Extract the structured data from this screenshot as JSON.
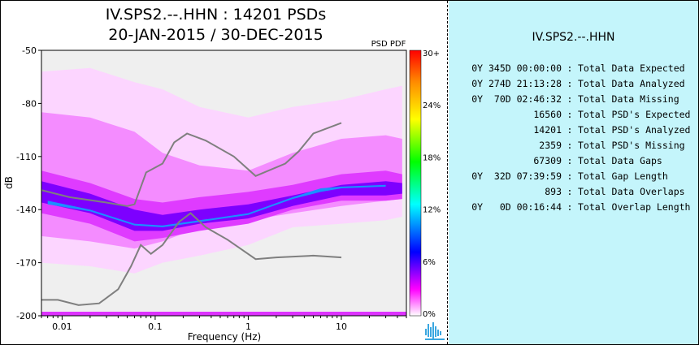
{
  "header": {
    "title": "IV.SPS2.--.HHN : 14201 PSDs",
    "subtitle": "20-JAN-2015 / 30-DEC-2015"
  },
  "colors": {
    "background_fill": "#efefef",
    "model_line": "#7f7f7f",
    "stats_panel": "#c4f5fb"
  },
  "chart_data": {
    "type": "heatmap",
    "x_scale": "log",
    "xlabel": "Frequency (Hz)",
    "ylabel": "dB",
    "xlim": [
      0.006,
      50
    ],
    "ylim": [
      -200,
      -50
    ],
    "xticks": [
      {
        "value": 0.01,
        "label": "0.01"
      },
      {
        "value": 0.1,
        "label": "0.1"
      },
      {
        "value": 1,
        "label": "1"
      },
      {
        "value": 10,
        "label": "10"
      }
    ],
    "yticks": [
      {
        "value": -50,
        "label": "-50"
      },
      {
        "value": -80,
        "label": "-80"
      },
      {
        "value": -110,
        "label": "-110"
      },
      {
        "value": -140,
        "label": "-140"
      },
      {
        "value": -170,
        "label": "-170"
      },
      {
        "value": -200,
        "label": "-200"
      }
    ],
    "colorbar": {
      "title": "PSD PDF",
      "ticks": [
        "30+",
        "24%",
        "18%",
        "12%",
        "6%",
        "0%"
      ],
      "stops": [
        "#ff0000",
        "#ff8c00",
        "#ffff00",
        "#00ff00",
        "#00ffff",
        "#0000ff",
        "#ff00ff",
        "#ffffff"
      ]
    },
    "series": [
      {
        "type": "line",
        "points": [
          [
            0.006,
            -191
          ],
          [
            0.009,
            -191
          ],
          [
            0.015,
            -194
          ],
          [
            0.025,
            -193
          ],
          [
            0.04,
            -185
          ],
          [
            0.055,
            -172
          ],
          [
            0.07,
            -160
          ],
          [
            0.09,
            -165
          ],
          [
            0.12,
            -160
          ],
          [
            0.18,
            -147
          ],
          [
            0.24,
            -142
          ],
          [
            0.35,
            -150
          ],
          [
            0.6,
            -157
          ],
          [
            1.2,
            -168
          ],
          [
            2.0,
            -167
          ],
          [
            5.0,
            -166
          ],
          [
            10,
            -167
          ]
        ]
      },
      {
        "type": "line",
        "points": [
          [
            0.006,
            -129
          ],
          [
            0.012,
            -133
          ],
          [
            0.03,
            -136
          ],
          [
            0.05,
            -138
          ],
          [
            0.06,
            -137
          ],
          [
            0.08,
            -119
          ],
          [
            0.12,
            -114
          ],
          [
            0.16,
            -102
          ],
          [
            0.22,
            -97
          ],
          [
            0.35,
            -101
          ],
          [
            0.7,
            -110
          ],
          [
            1.2,
            -121
          ],
          [
            2.5,
            -114
          ],
          [
            3.5,
            -107
          ],
          [
            5.0,
            -97
          ],
          [
            10,
            -91
          ]
        ]
      }
    ],
    "density_bands": [
      {
        "level": 0.02,
        "points": [
          [
            0.006,
            -62,
            -170
          ],
          [
            0.02,
            -60,
            -172
          ],
          [
            0.06,
            -68,
            -176
          ],
          [
            0.12,
            -72,
            -170
          ],
          [
            0.3,
            -82,
            -166
          ],
          [
            1,
            -88,
            -160
          ],
          [
            3,
            -82,
            -150
          ],
          [
            10,
            -78,
            -148
          ],
          [
            30,
            -72,
            -146
          ],
          [
            45,
            -70,
            -144
          ]
        ]
      },
      {
        "level": 0.06,
        "points": [
          [
            0.006,
            -85,
            -155
          ],
          [
            0.02,
            -88,
            -158
          ],
          [
            0.06,
            -96,
            -162
          ],
          [
            0.12,
            -108,
            -158
          ],
          [
            0.3,
            -115,
            -150
          ],
          [
            1,
            -118,
            -146
          ],
          [
            3,
            -108,
            -142
          ],
          [
            10,
            -100,
            -138
          ],
          [
            30,
            -98,
            -135
          ],
          [
            45,
            -100,
            -134
          ]
        ]
      },
      {
        "level": 0.14,
        "points": [
          [
            0.006,
            -118,
            -142
          ],
          [
            0.02,
            -125,
            -148
          ],
          [
            0.06,
            -134,
            -158
          ],
          [
            0.12,
            -136,
            -156
          ],
          [
            0.3,
            -133,
            -152
          ],
          [
            1,
            -130,
            -148
          ],
          [
            3,
            -126,
            -140
          ],
          [
            10,
            -120,
            -135
          ],
          [
            30,
            -118,
            -135
          ],
          [
            45,
            -120,
            -134
          ]
        ]
      },
      {
        "level": 0.35,
        "points": [
          [
            0.006,
            -124,
            -136
          ],
          [
            0.02,
            -131,
            -142
          ],
          [
            0.06,
            -140,
            -152
          ],
          [
            0.12,
            -143,
            -152
          ],
          [
            0.3,
            -140,
            -148
          ],
          [
            1,
            -137,
            -145
          ],
          [
            3,
            -132,
            -138
          ],
          [
            10,
            -126,
            -132
          ],
          [
            30,
            -124,
            -132
          ],
          [
            45,
            -125,
            -131
          ]
        ]
      },
      {
        "level": 0.9,
        "points": [
          [
            0.007,
            -135,
            -137
          ],
          [
            0.02,
            -140,
            -141
          ],
          [
            0.06,
            -148,
            -149
          ],
          [
            0.12,
            -149,
            -150
          ],
          [
            0.3,
            -146,
            -147
          ],
          [
            1,
            -142,
            -143
          ],
          [
            3,
            -133,
            -134
          ],
          [
            6,
            -128,
            -130
          ],
          [
            10,
            -127,
            -128
          ],
          [
            30,
            -126,
            -127
          ]
        ]
      }
    ]
  },
  "stats": {
    "station": "IV.SPS2.--.HHN",
    "rows": [
      {
        "value": "0Y 345D 00:00:00",
        "label": "Total Data Expected"
      },
      {
        "value": "0Y 274D 21:13:28",
        "label": "Total Data Analyzed"
      },
      {
        "value": "0Y  70D 02:46:32",
        "label": "Total Data Missing"
      },
      {
        "value": "16560",
        "label": "Total PSD's Expected"
      },
      {
        "value": "14201",
        "label": "Total PSD's Analyzed"
      },
      {
        "value": "2359",
        "label": "Total PSD's Missing"
      },
      {
        "value": "67309",
        "label": "Total Data Gaps"
      },
      {
        "value": "0Y  32D 07:39:59",
        "label": "Total Gap Length"
      },
      {
        "value": "893",
        "label": "Total Data Overlaps"
      },
      {
        "value": "0Y   0D 00:16:44",
        "label": "Total Overlap Length"
      }
    ],
    "separator": ":"
  },
  "logo": {
    "icon": "waveform-logo-icon"
  }
}
